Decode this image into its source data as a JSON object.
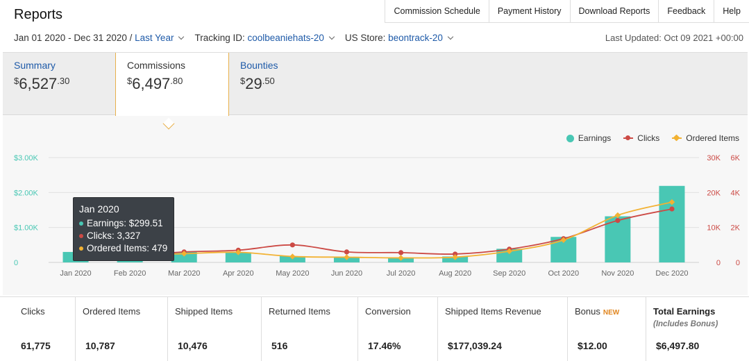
{
  "header": {
    "title": "Reports",
    "nav": [
      "Commission Schedule",
      "Payment History",
      "Download Reports",
      "Feedback",
      "Help"
    ],
    "date_range": "Jan 01 2020 - Dec 31 2020 /",
    "date_preset": "Last Year",
    "tracking_label": "Tracking ID:",
    "tracking_value": "coolbeaniehats-20",
    "store_label": "US Store:",
    "store_value": "beontrack-20",
    "last_updated": "Last Updated: Oct 09 2021 +00:00"
  },
  "tabs": [
    {
      "label": "Summary",
      "currency": "$",
      "whole": "6,527",
      "cents": ".30"
    },
    {
      "label": "Commissions",
      "currency": "$",
      "whole": "6,497",
      "cents": ".80"
    },
    {
      "label": "Bounties",
      "currency": "$",
      "whole": "29",
      "cents": ".50"
    }
  ],
  "legend": {
    "earnings": "Earnings",
    "clicks": "Clicks",
    "ordered": "Ordered Items"
  },
  "tooltip": {
    "title": "Jan 2020",
    "earnings": "Earnings: $299.51",
    "clicks": "Clicks: 3,327",
    "ordered": "Ordered Items: 479"
  },
  "chart_data": {
    "type": "bar",
    "categories": [
      "Jan 2020",
      "Feb 2020",
      "Mar 2020",
      "Apr 2020",
      "May 2020",
      "Jun 2020",
      "Jul 2020",
      "Aug 2020",
      "Sep 2020",
      "Oct 2020",
      "Nov 2020",
      "Dec 2020"
    ],
    "series": [
      {
        "name": "Earnings",
        "kind": "bar",
        "axis": "left",
        "color": "#49c7b4",
        "values": [
          299.51,
          230,
          300,
          290,
          180,
          150,
          140,
          170,
          390,
          730,
          1320,
          2190
        ]
      },
      {
        "name": "Clicks",
        "kind": "line",
        "axis": "right1",
        "color": "#cc4a45",
        "values": [
          3327,
          2000,
          3000,
          3500,
          5000,
          3000,
          2800,
          2400,
          3800,
          6800,
          12000,
          15300
        ]
      },
      {
        "name": "Ordered Items",
        "kind": "line",
        "axis": "right2",
        "color": "#f2b233",
        "values": [
          479,
          400,
          500,
          580,
          340,
          300,
          260,
          300,
          640,
          1280,
          2700,
          3450
        ]
      }
    ],
    "left_axis": {
      "ticks": [
        "0",
        "$1.00K",
        "$2.00K",
        "$3.00K"
      ],
      "ylim": [
        0,
        3000
      ],
      "color": "#49c7b4"
    },
    "right1_axis": {
      "ticks": [
        "0",
        "10K",
        "20K",
        "30K"
      ],
      "ylim": [
        0,
        30000
      ],
      "color": "#cc4a45"
    },
    "right2_axis": {
      "ticks": [
        "0",
        "2K",
        "4K",
        "6K"
      ],
      "ylim": [
        0,
        6000
      ],
      "color": "#cc4a45"
    },
    "grid": true,
    "legend_position": "top-right"
  },
  "metrics": [
    {
      "label": "Clicks",
      "value": "61,775"
    },
    {
      "label": "Ordered Items",
      "value": "10,787"
    },
    {
      "label": "Shipped Items",
      "value": "10,476"
    },
    {
      "label": "Returned Items",
      "value": "516"
    },
    {
      "label": "Conversion",
      "value": "17.46%"
    },
    {
      "label": "Shipped Items Revenue",
      "value": "$177,039.24"
    },
    {
      "label": "Bonus",
      "badge": "NEW",
      "value": "$12.00"
    },
    {
      "label": "Total Earnings",
      "sub": "(Includes Bonus)",
      "value": "$6,497.80"
    }
  ]
}
